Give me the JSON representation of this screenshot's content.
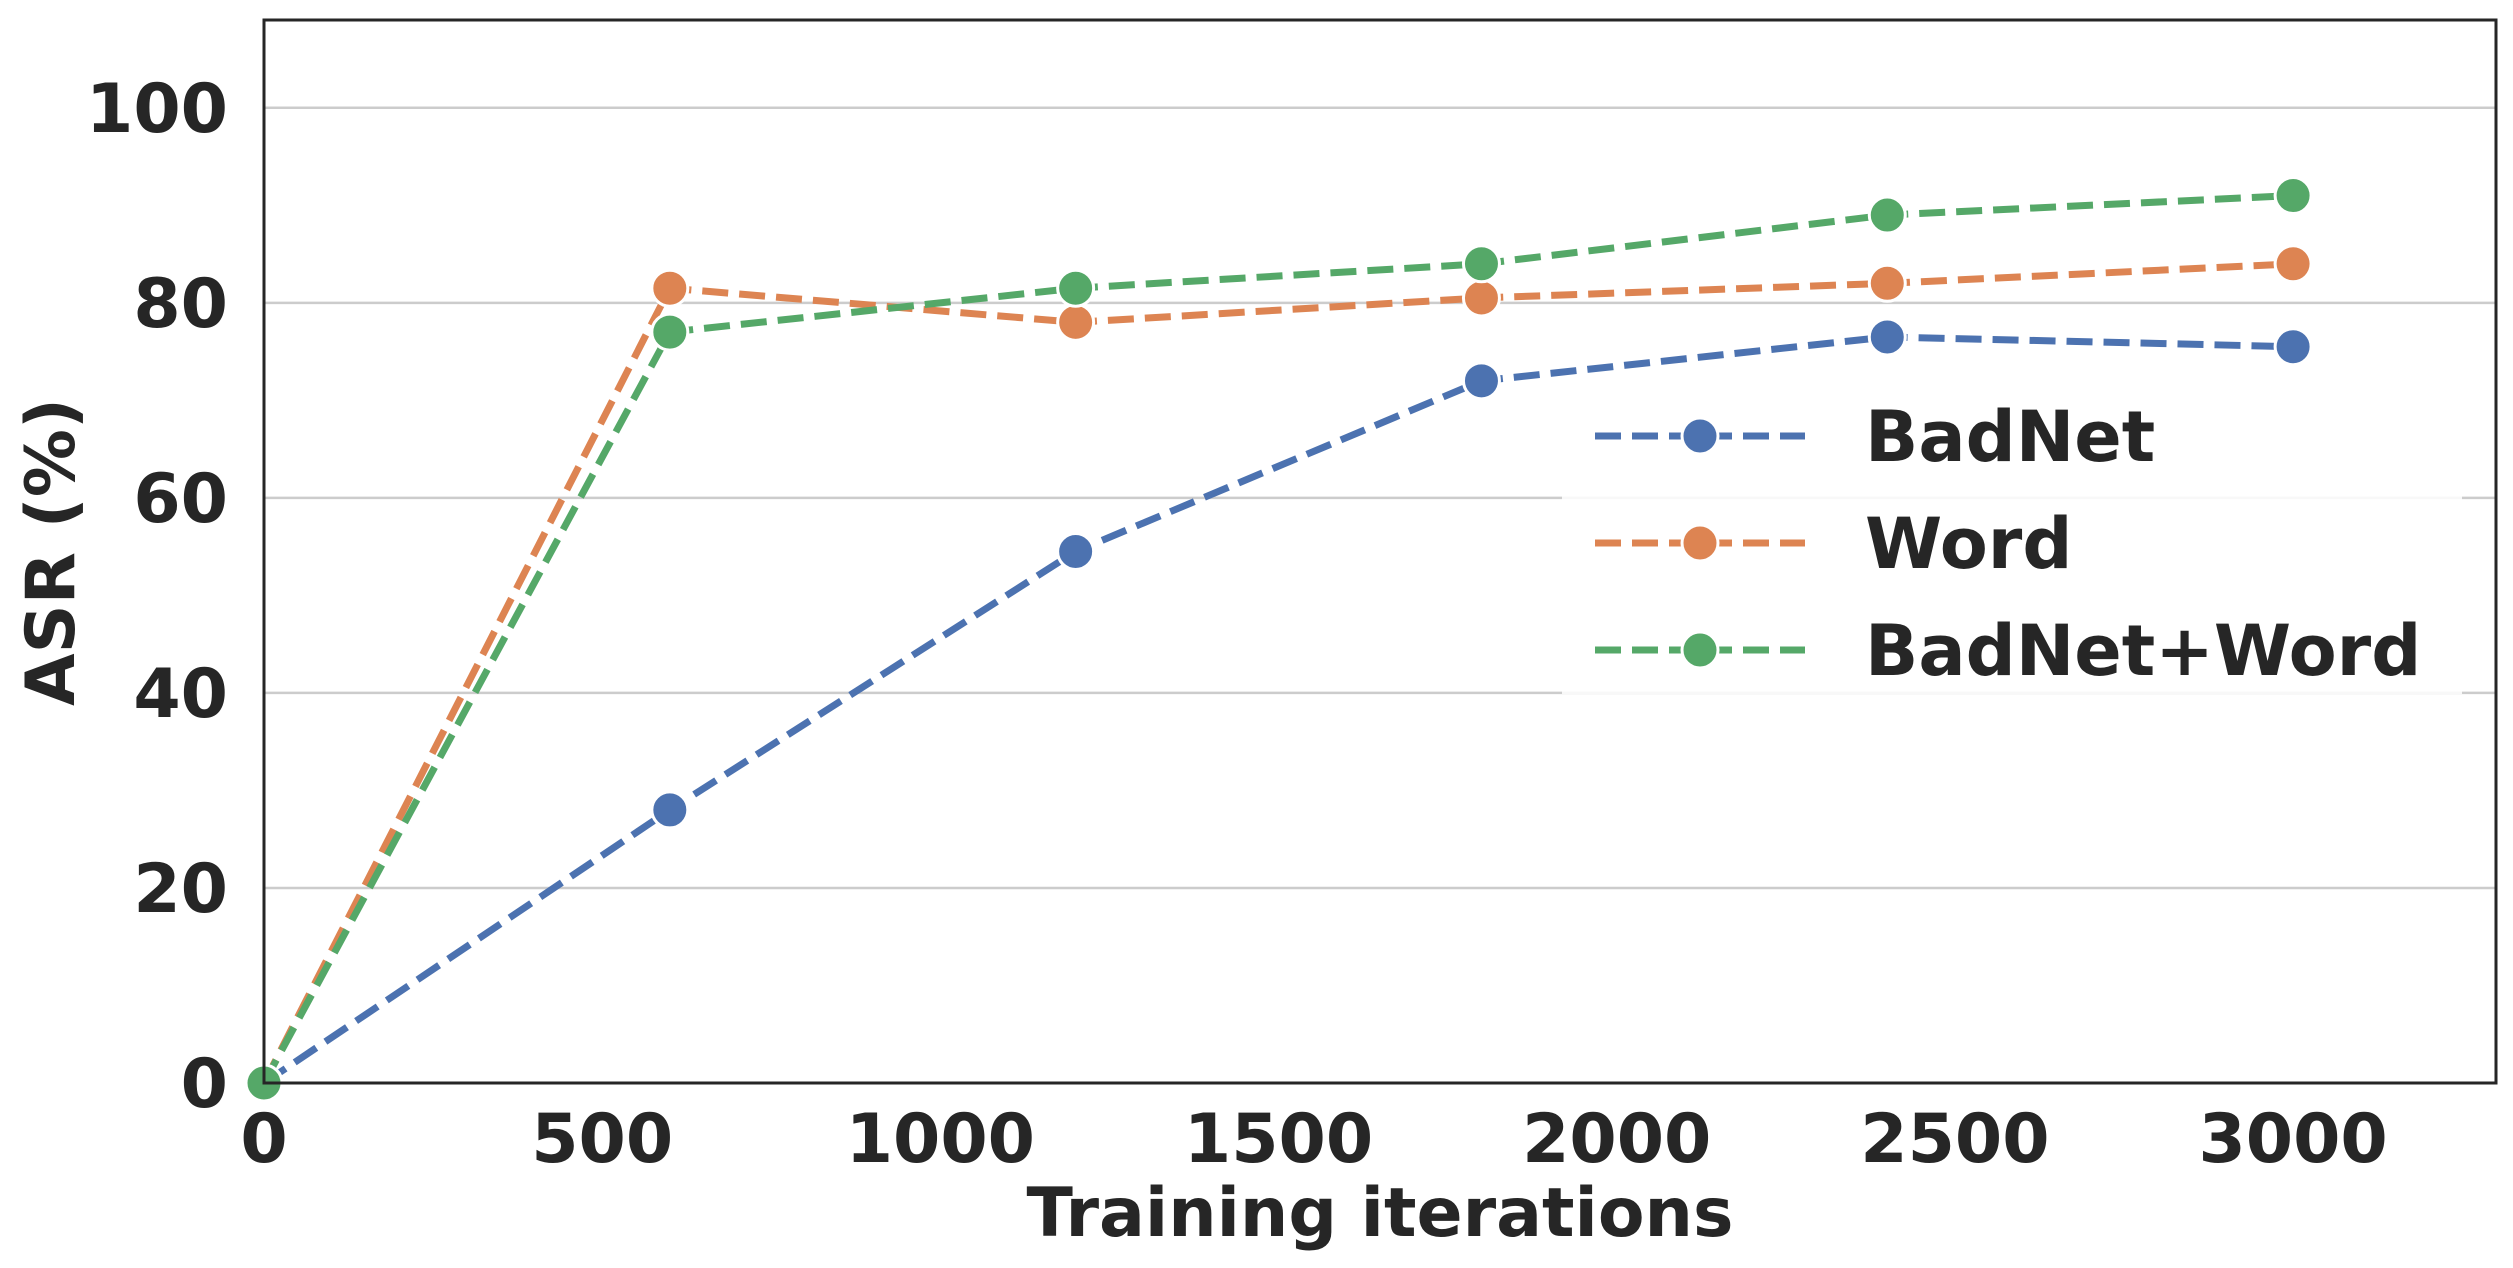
{
  "chart_data": {
    "type": "line",
    "xlabel": "Training iterations",
    "ylabel": "ASR (%)",
    "xlim": [
      0,
      3300
    ],
    "ylim": [
      0,
      109
    ],
    "xticks": [
      "0",
      "500",
      "1000",
      "1500",
      "2000",
      "2500",
      "3000"
    ],
    "yticks": [
      "0",
      "20",
      "40",
      "60",
      "80",
      "100"
    ],
    "grid": "horizontal",
    "legend_position": "center-right",
    "x": [
      0,
      600,
      1200,
      1800,
      2400,
      3000
    ],
    "series": [
      {
        "name": "BadNet",
        "color": "#4c72b0",
        "values": [
          0,
          28,
          54.5,
          72,
          76.5,
          75.5
        ]
      },
      {
        "name": "Word",
        "color": "#dd8452",
        "values": [
          0,
          81.5,
          78,
          80.5,
          82,
          84
        ]
      },
      {
        "name": "BadNet+Word",
        "color": "#55a868",
        "values": [
          0,
          77,
          81.5,
          84,
          89,
          91
        ]
      }
    ]
  }
}
